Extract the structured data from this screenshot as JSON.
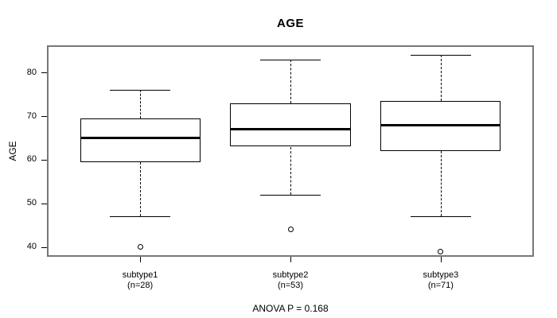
{
  "chart_data": {
    "type": "boxplot",
    "title": "AGE",
    "ylabel": "AGE",
    "xlabel": "",
    "caption": "ANOVA P = 0.168",
    "yticks": [
      40,
      50,
      60,
      70,
      80
    ],
    "ylim": [
      37.8,
      86.2
    ],
    "grid": false,
    "colors": {
      "frame": "#777777",
      "box_stroke": "#000000",
      "median": "#000000",
      "background": "#ffffff",
      "text": "#000000"
    },
    "groups": [
      {
        "label": "subtype1",
        "sublabel": "(n=28)",
        "n": 28,
        "whisker_low": 47,
        "q1": 59.5,
        "median": 65,
        "q3": 69.5,
        "whisker_high": 76,
        "outliers": [
          40
        ]
      },
      {
        "label": "subtype2",
        "sublabel": "(n=53)",
        "n": 53,
        "whisker_low": 52,
        "q1": 63,
        "median": 67,
        "q3": 73,
        "whisker_high": 83,
        "outliers": [
          44
        ]
      },
      {
        "label": "subtype3",
        "sublabel": "(n=71)",
        "n": 71,
        "whisker_low": 47,
        "q1": 62,
        "median": 68,
        "q3": 73.5,
        "whisker_high": 84,
        "outliers": [
          39
        ]
      }
    ]
  }
}
